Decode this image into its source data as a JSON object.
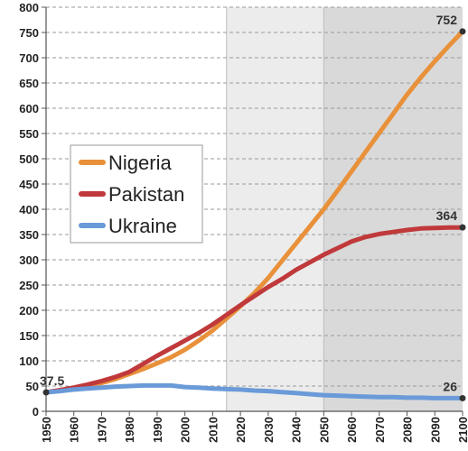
{
  "chart_data": {
    "type": "line",
    "xlim": [
      1950,
      2100
    ],
    "ylim": [
      0,
      800
    ],
    "x_ticks": [
      "1950",
      "1960",
      "1970",
      "1980",
      "1990",
      "2000",
      "2010",
      "2020",
      "2030",
      "2040",
      "2050",
      "2060",
      "2070",
      "2080",
      "2090",
      "2100"
    ],
    "y_ticks": [
      "0",
      "50",
      "100",
      "150",
      "200",
      "250",
      "300",
      "350",
      "400",
      "450",
      "500",
      "550",
      "600",
      "650",
      "700",
      "750",
      "800"
    ],
    "grid": "horizontal-dashed",
    "shaded_regions": [
      {
        "from": 2015,
        "to": 2050,
        "color": "#ececec"
      },
      {
        "from": 2050,
        "to": 2100,
        "color": "#d9d9d9"
      }
    ],
    "legend_position": "middle-left",
    "x": [
      1950,
      1955,
      1960,
      1965,
      1970,
      1975,
      1980,
      1985,
      1990,
      1995,
      2000,
      2005,
      2010,
      2015,
      2020,
      2025,
      2030,
      2035,
      2040,
      2045,
      2050,
      2055,
      2060,
      2065,
      2070,
      2075,
      2080,
      2085,
      2090,
      2095,
      2100
    ],
    "series": [
      {
        "name": "Nigeria",
        "color": "#e8913a",
        "values": [
          37.5,
          41,
          45,
          51,
          56,
          64,
          74,
          84,
          95,
          107,
          122,
          140,
          160,
          184,
          208,
          234,
          264,
          298,
          332,
          366,
          400,
          437,
          475,
          513,
          551,
          589,
          627,
          661,
          693,
          723,
          752
        ]
      },
      {
        "name": "Pakistan",
        "color": "#c0393b",
        "values": [
          37.5,
          42,
          47,
          53,
          60,
          68,
          78,
          94,
          110,
          125,
          140,
          155,
          172,
          191,
          210,
          228,
          246,
          262,
          280,
          295,
          310,
          323,
          336,
          345,
          351,
          355,
          359,
          362,
          363,
          364,
          364
        ]
      },
      {
        "name": "Ukraine",
        "color": "#6a9ad8",
        "values": [
          37.5,
          40,
          43,
          45,
          47,
          49,
          50,
          51,
          51,
          51,
          48,
          47,
          45,
          44,
          43,
          41,
          40,
          38,
          36,
          34,
          32,
          31,
          30,
          29,
          28,
          28,
          27,
          27,
          26,
          26,
          26
        ]
      }
    ],
    "annotations": [
      {
        "text": "37.5",
        "x": 1950,
        "y": 37.5
      },
      {
        "text": "752",
        "x": 2100,
        "y": 752
      },
      {
        "text": "364",
        "x": 2100,
        "y": 364
      },
      {
        "text": "26",
        "x": 2100,
        "y": 26
      }
    ]
  }
}
